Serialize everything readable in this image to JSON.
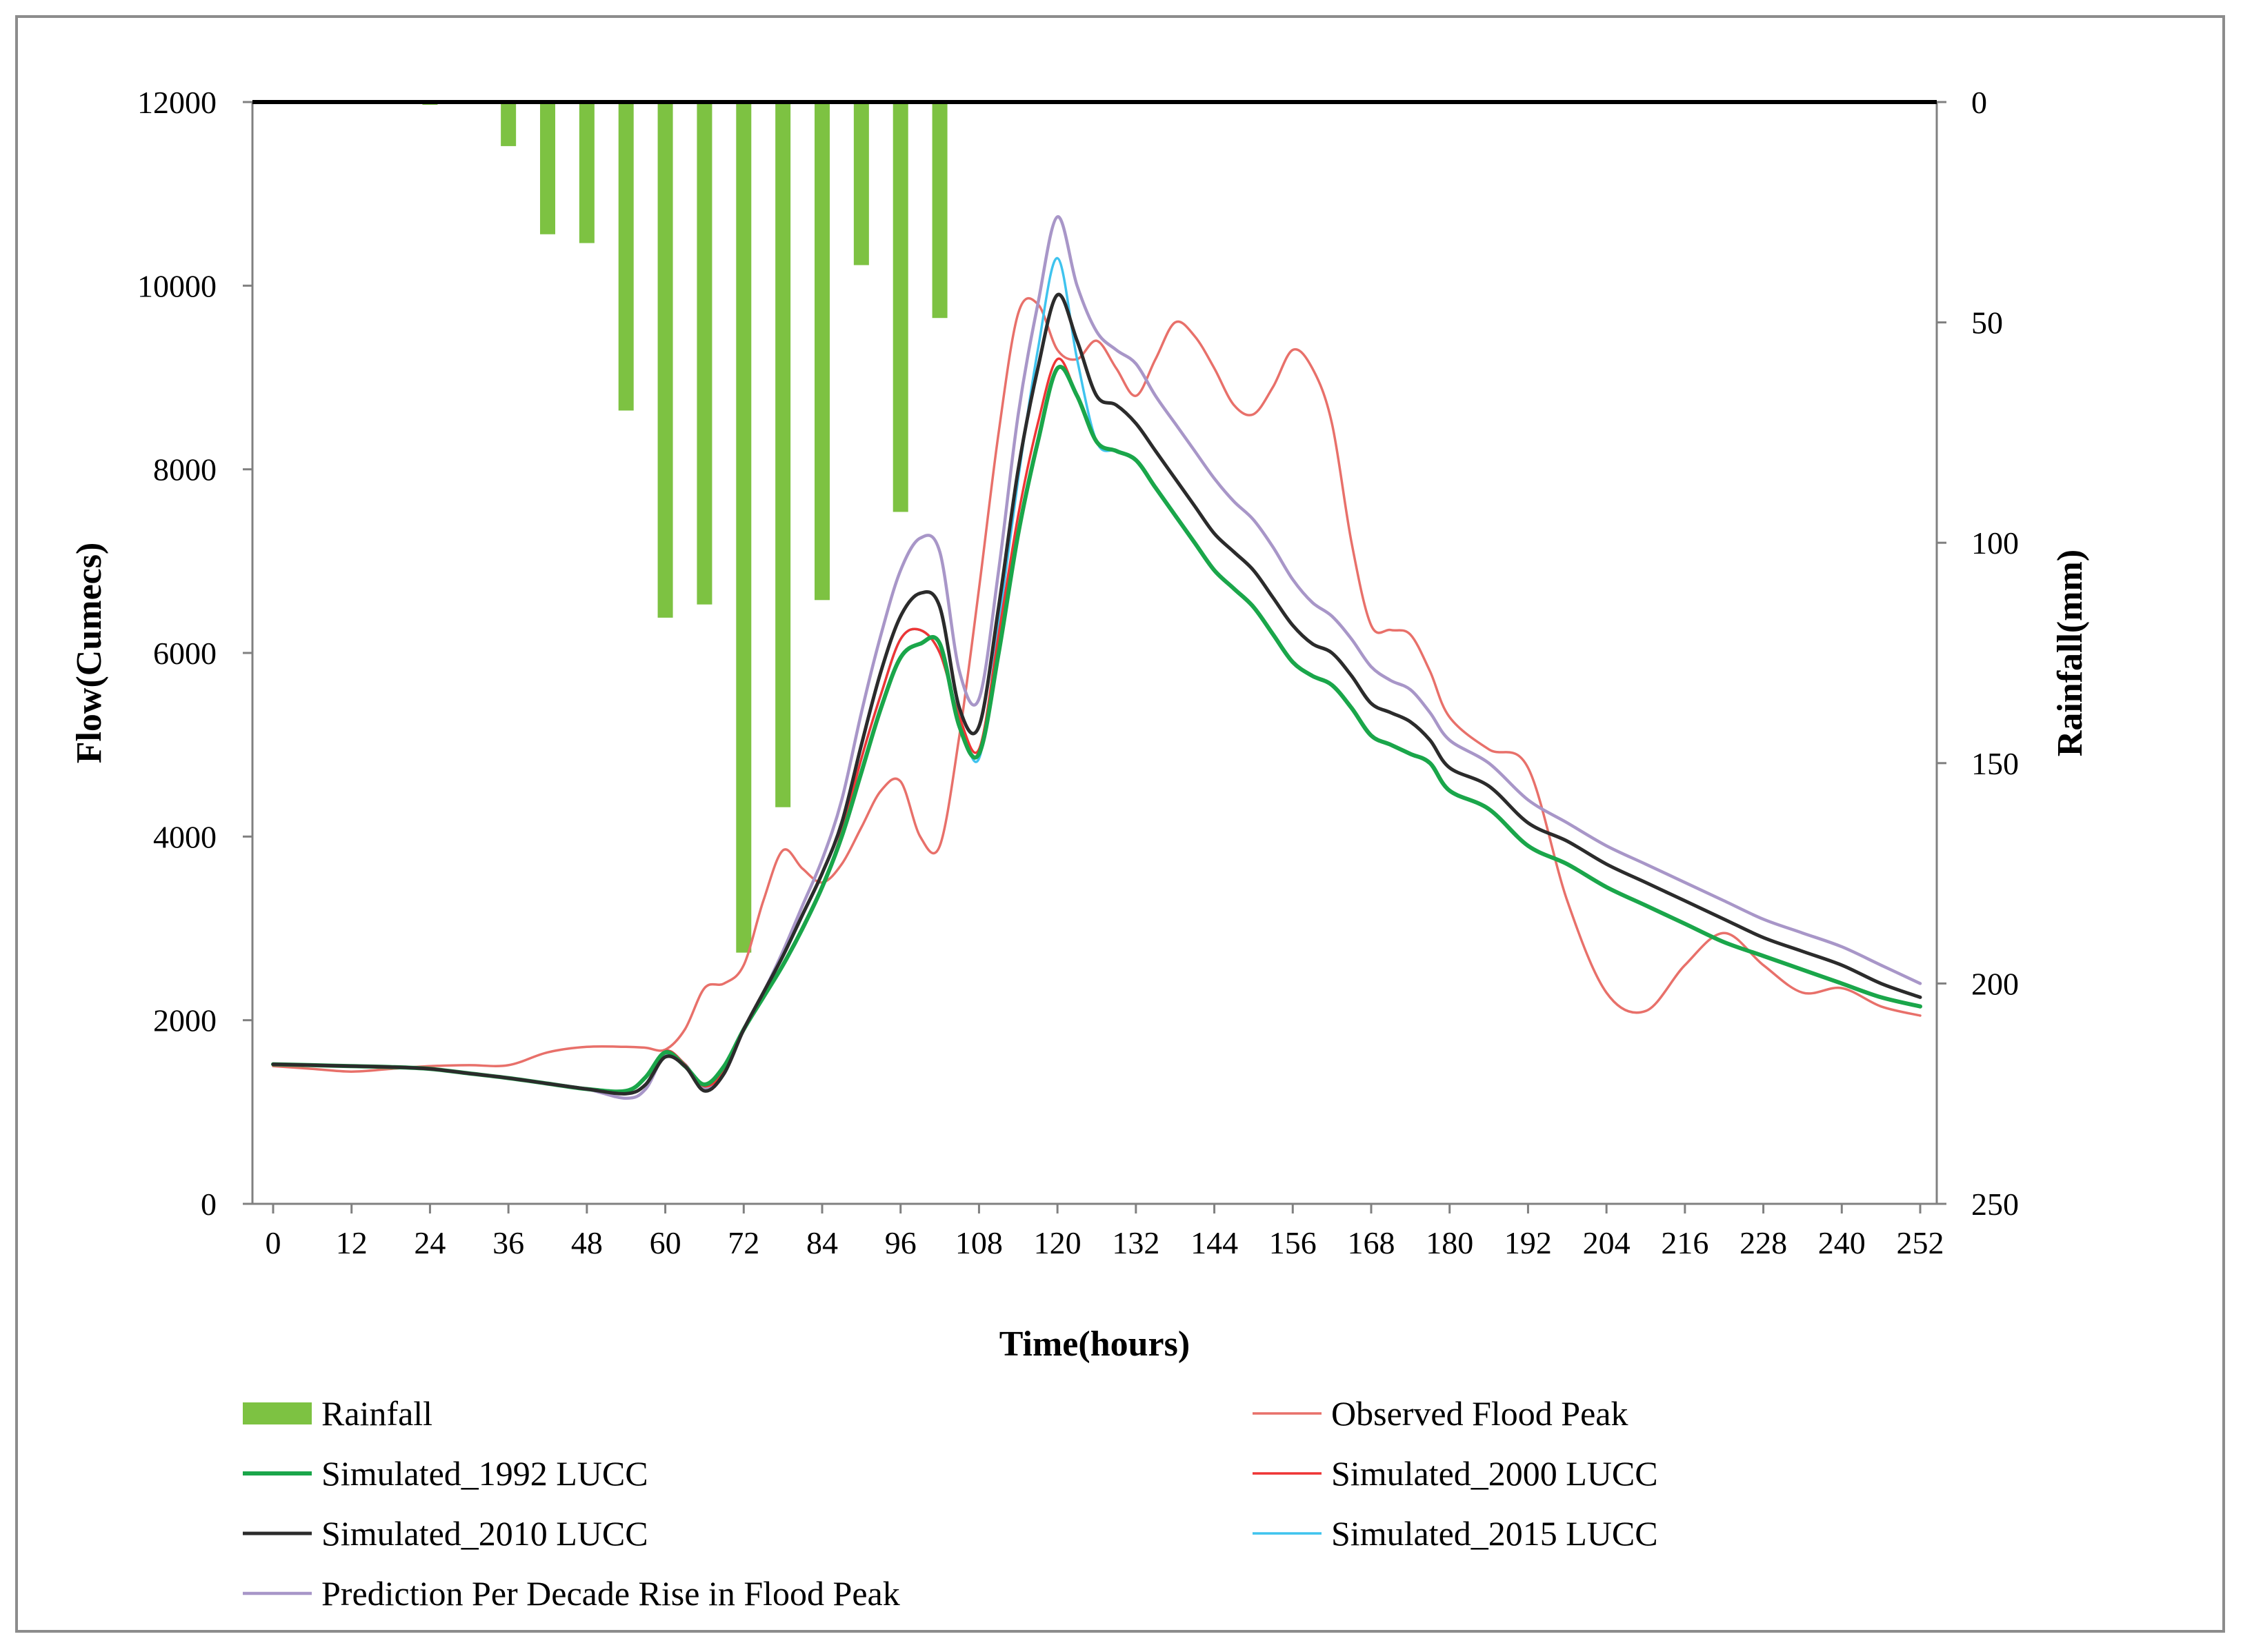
{
  "chart_data": {
    "type": "line+bar",
    "title": "",
    "xlabel": "Time(hours)",
    "ylabel": "Flow(Cumecs)",
    "y2label": "Rainfall(mm)",
    "xlim": [
      0,
      252
    ],
    "ylim": [
      0,
      12000
    ],
    "y2lim": [
      0,
      250
    ],
    "y2_inverted": true,
    "x_ticks": [
      0,
      12,
      24,
      36,
      48,
      60,
      72,
      84,
      96,
      108,
      120,
      132,
      144,
      156,
      168,
      180,
      192,
      204,
      216,
      228,
      240,
      252
    ],
    "y_ticks": [
      0,
      2000,
      4000,
      6000,
      8000,
      10000,
      12000
    ],
    "y2_ticks": [
      0,
      50,
      100,
      150,
      200,
      250
    ],
    "legend_position": "bottom",
    "colors": {
      "rainfall": "#7dc242",
      "observed": "#e8706a",
      "sim1992": "#1aa64a",
      "sim2000": "#ef3535",
      "sim2010": "#2b2b2b",
      "sim2015": "#3fc3ee",
      "prediction": "#a896c8",
      "axis": "#000000",
      "frame": "#8c8c8c"
    },
    "rainfall": {
      "name": "Rainfall",
      "x": [
        24,
        36,
        42,
        48,
        54,
        60,
        66,
        72,
        78,
        84,
        90,
        96,
        102
      ],
      "values": [
        0.5,
        10,
        30,
        32,
        70,
        117,
        114,
        193,
        160,
        113,
        37,
        93,
        49
      ]
    },
    "x": [
      0,
      6,
      12,
      18,
      24,
      30,
      36,
      42,
      48,
      54,
      57,
      60,
      63,
      66,
      69,
      72,
      75,
      78,
      81,
      84,
      87,
      90,
      93,
      96,
      99,
      102,
      105,
      108,
      111,
      114,
      117,
      120,
      123,
      126,
      129,
      132,
      135,
      138,
      141,
      144,
      147,
      150,
      153,
      156,
      159,
      162,
      165,
      168,
      171,
      174,
      177,
      180,
      186,
      192,
      198,
      204,
      210,
      216,
      222,
      228,
      234,
      240,
      246,
      252
    ],
    "series": [
      {
        "name": "Observed Flood Peak",
        "key": "observed",
        "x": [
          0,
          6,
          12,
          18,
          24,
          30,
          36,
          42,
          48,
          54,
          57,
          60,
          63,
          66,
          69,
          72,
          75,
          78,
          81,
          84,
          87,
          90,
          93,
          96,
          99,
          102,
          105,
          108,
          111,
          114,
          117,
          120,
          123,
          126,
          129,
          132,
          135,
          138,
          141,
          144,
          147,
          150,
          153,
          156,
          159,
          162,
          165,
          168,
          171,
          174,
          177,
          180,
          186,
          192,
          198,
          204,
          210,
          216,
          222,
          228,
          234,
          240,
          246,
          252
        ],
        "values": [
          1500,
          1470,
          1440,
          1470,
          1500,
          1510,
          1510,
          1650,
          1710,
          1710,
          1700,
          1680,
          1900,
          2350,
          2400,
          2600,
          3300,
          3850,
          3650,
          3500,
          3700,
          4100,
          4500,
          4600,
          4000,
          3900,
          5100,
          6700,
          8400,
          9700,
          9800,
          9300,
          9200,
          9400,
          9100,
          8800,
          9200,
          9600,
          9450,
          9100,
          8700,
          8600,
          8900,
          9300,
          9100,
          8500,
          7200,
          6300,
          6250,
          6200,
          5800,
          5300,
          4950,
          4750,
          3300,
          2300,
          2100,
          2600,
          2950,
          2600,
          2300,
          2350,
          2150,
          2050
        ]
      },
      {
        "name": "Simulated_1992 LUCC",
        "key": "sim1992",
        "x": [
          0,
          6,
          12,
          18,
          24,
          30,
          36,
          42,
          48,
          54,
          57,
          60,
          63,
          66,
          69,
          72,
          75,
          78,
          81,
          84,
          87,
          90,
          93,
          96,
          99,
          102,
          105,
          108,
          111,
          114,
          117,
          120,
          123,
          126,
          129,
          132,
          135,
          138,
          141,
          144,
          147,
          150,
          153,
          156,
          159,
          162,
          165,
          168,
          171,
          174,
          177,
          180,
          186,
          192,
          198,
          204,
          210,
          216,
          222,
          228,
          234,
          240,
          246,
          252
        ],
        "values": [
          1520,
          1510,
          1500,
          1490,
          1470,
          1420,
          1370,
          1310,
          1250,
          1230,
          1380,
          1650,
          1500,
          1300,
          1500,
          1900,
          2250,
          2600,
          3000,
          3450,
          4000,
          4700,
          5400,
          5950,
          6100,
          6100,
          5200,
          4900,
          6000,
          7300,
          8300,
          9100,
          8800,
          8300,
          8200,
          8100,
          7800,
          7500,
          7200,
          6900,
          6700,
          6500,
          6200,
          5900,
          5750,
          5650,
          5400,
          5100,
          5000,
          4900,
          4800,
          4500,
          4300,
          3900,
          3700,
          3450,
          3250,
          3050,
          2850,
          2700,
          2550,
          2400,
          2250,
          2150
        ]
      },
      {
        "name": "Simulated_2000 LUCC",
        "key": "sim2000",
        "x": [
          0,
          6,
          12,
          18,
          24,
          30,
          36,
          42,
          48,
          54,
          57,
          60,
          63,
          66,
          69,
          72,
          75,
          78,
          81,
          84,
          87,
          90,
          93,
          96,
          99,
          102,
          105,
          108,
          111,
          114,
          117,
          120,
          123,
          126,
          129,
          132,
          135,
          138,
          141,
          144,
          147,
          150,
          153,
          156,
          159,
          162,
          165,
          168,
          171,
          174,
          177,
          180,
          186,
          192,
          198,
          204,
          210,
          216,
          222,
          228,
          234,
          240,
          246,
          252
        ],
        "values": [
          1520,
          1510,
          1500,
          1490,
          1470,
          1420,
          1370,
          1310,
          1250,
          1200,
          1300,
          1660,
          1520,
          1280,
          1450,
          1900,
          2250,
          2600,
          3000,
          3450,
          4050,
          4850,
          5550,
          6150,
          6250,
          6000,
          5300,
          4950,
          6200,
          7500,
          8500,
          9200,
          8800,
          8300,
          8200,
          8100,
          7800,
          7500,
          7200,
          6900,
          6700,
          6500,
          6200,
          5900,
          5750,
          5650,
          5400,
          5100,
          5000,
          4900,
          4800,
          4500,
          4300,
          3900,
          3700,
          3450,
          3250,
          3050,
          2850,
          2700,
          2550,
          2400,
          2250,
          2150
        ]
      },
      {
        "name": "Simulated_2010 LUCC",
        "key": "sim2010",
        "x": [
          0,
          6,
          12,
          18,
          24,
          30,
          36,
          42,
          48,
          54,
          57,
          60,
          63,
          66,
          69,
          72,
          75,
          78,
          81,
          84,
          87,
          90,
          93,
          96,
          99,
          102,
          105,
          108,
          111,
          114,
          117,
          120,
          123,
          126,
          129,
          132,
          135,
          138,
          141,
          144,
          147,
          150,
          153,
          156,
          159,
          162,
          165,
          168,
          171,
          174,
          177,
          180,
          186,
          192,
          198,
          204,
          210,
          216,
          222,
          228,
          234,
          240,
          246,
          252
        ],
        "values": [
          1520,
          1510,
          1500,
          1490,
          1470,
          1420,
          1370,
          1310,
          1250,
          1200,
          1300,
          1600,
          1500,
          1230,
          1420,
          1900,
          2300,
          2700,
          3150,
          3600,
          4150,
          5000,
          5800,
          6400,
          6650,
          6500,
          5400,
          5200,
          6500,
          8000,
          9100,
          9900,
          9400,
          8800,
          8700,
          8500,
          8200,
          7900,
          7600,
          7300,
          7100,
          6900,
          6600,
          6300,
          6100,
          6000,
          5750,
          5450,
          5350,
          5250,
          5050,
          4750,
          4550,
          4150,
          3950,
          3700,
          3500,
          3300,
          3100,
          2900,
          2750,
          2600,
          2400,
          2250
        ]
      },
      {
        "name": "Simulated_2015 LUCC",
        "key": "sim2015",
        "x": [
          0,
          6,
          12,
          18,
          24,
          30,
          36,
          42,
          48,
          54,
          57,
          60,
          63,
          66,
          69,
          72,
          75,
          78,
          81,
          84,
          87,
          90,
          93,
          96,
          99,
          102,
          105,
          108,
          111,
          114,
          117,
          120,
          123,
          126,
          129,
          132,
          135,
          138,
          141,
          144,
          147,
          150,
          153,
          156,
          159,
          162,
          165,
          168,
          171,
          174,
          177,
          180,
          186,
          192,
          198,
          204,
          210,
          216,
          222,
          228,
          234,
          240,
          246,
          252
        ],
        "values": [
          1520,
          1510,
          1500,
          1490,
          1470,
          1420,
          1370,
          1310,
          1250,
          1200,
          1300,
          1660,
          1520,
          1280,
          1450,
          1900,
          2250,
          2600,
          3000,
          3450,
          4050,
          4850,
          5550,
          6150,
          6250,
          6000,
          5300,
          4850,
          6300,
          7900,
          9300,
          10300,
          9200,
          8300,
          8200,
          8100,
          7800,
          7500,
          7200,
          6900,
          6700,
          6500,
          6200,
          5900,
          5750,
          5650,
          5400,
          5100,
          5000,
          4900,
          4800,
          4500,
          4300,
          3900,
          3700,
          3450,
          3250,
          3050,
          2850,
          2700,
          2550,
          2400,
          2250,
          2150
        ]
      },
      {
        "name": "Prediction Per Decade Rise in Flood Peak",
        "key": "prediction",
        "x": [
          0,
          6,
          12,
          18,
          24,
          30,
          36,
          42,
          48,
          54,
          57,
          60,
          63,
          66,
          69,
          72,
          75,
          78,
          81,
          84,
          87,
          90,
          93,
          96,
          99,
          102,
          105,
          108,
          111,
          114,
          117,
          120,
          123,
          126,
          129,
          132,
          135,
          138,
          141,
          144,
          147,
          150,
          153,
          156,
          159,
          162,
          165,
          168,
          171,
          174,
          177,
          180,
          186,
          192,
          198,
          204,
          210,
          216,
          222,
          228,
          234,
          240,
          246,
          252
        ],
        "values": [
          1520,
          1510,
          1500,
          1490,
          1470,
          1420,
          1370,
          1310,
          1250,
          1150,
          1250,
          1620,
          1520,
          1250,
          1420,
          1900,
          2300,
          2750,
          3250,
          3750,
          4400,
          5350,
          6200,
          6900,
          7250,
          7100,
          5800,
          5500,
          6900,
          8600,
          9800,
          10750,
          10000,
          9500,
          9300,
          9150,
          8800,
          8500,
          8200,
          7900,
          7650,
          7450,
          7150,
          6800,
          6550,
          6400,
          6150,
          5850,
          5700,
          5600,
          5350,
          5050,
          4800,
          4400,
          4150,
          3900,
          3700,
          3500,
          3300,
          3100,
          2950,
          2800,
          2600,
          2400
        ]
      }
    ],
    "legend": [
      {
        "key": "rainfall",
        "label": "Rainfall",
        "kind": "bar"
      },
      {
        "key": "observed",
        "label": "Observed Flood Peak",
        "kind": "line"
      },
      {
        "key": "sim1992",
        "label": "Simulated_1992 LUCC",
        "kind": "line"
      },
      {
        "key": "sim2000",
        "label": "Simulated_2000 LUCC",
        "kind": "line"
      },
      {
        "key": "sim2010",
        "label": "Simulated_2010 LUCC",
        "kind": "line"
      },
      {
        "key": "sim2015",
        "label": "Simulated_2015 LUCC",
        "kind": "line"
      },
      {
        "key": "prediction",
        "label": "Prediction Per Decade Rise in Flood Peak",
        "kind": "line"
      }
    ]
  }
}
